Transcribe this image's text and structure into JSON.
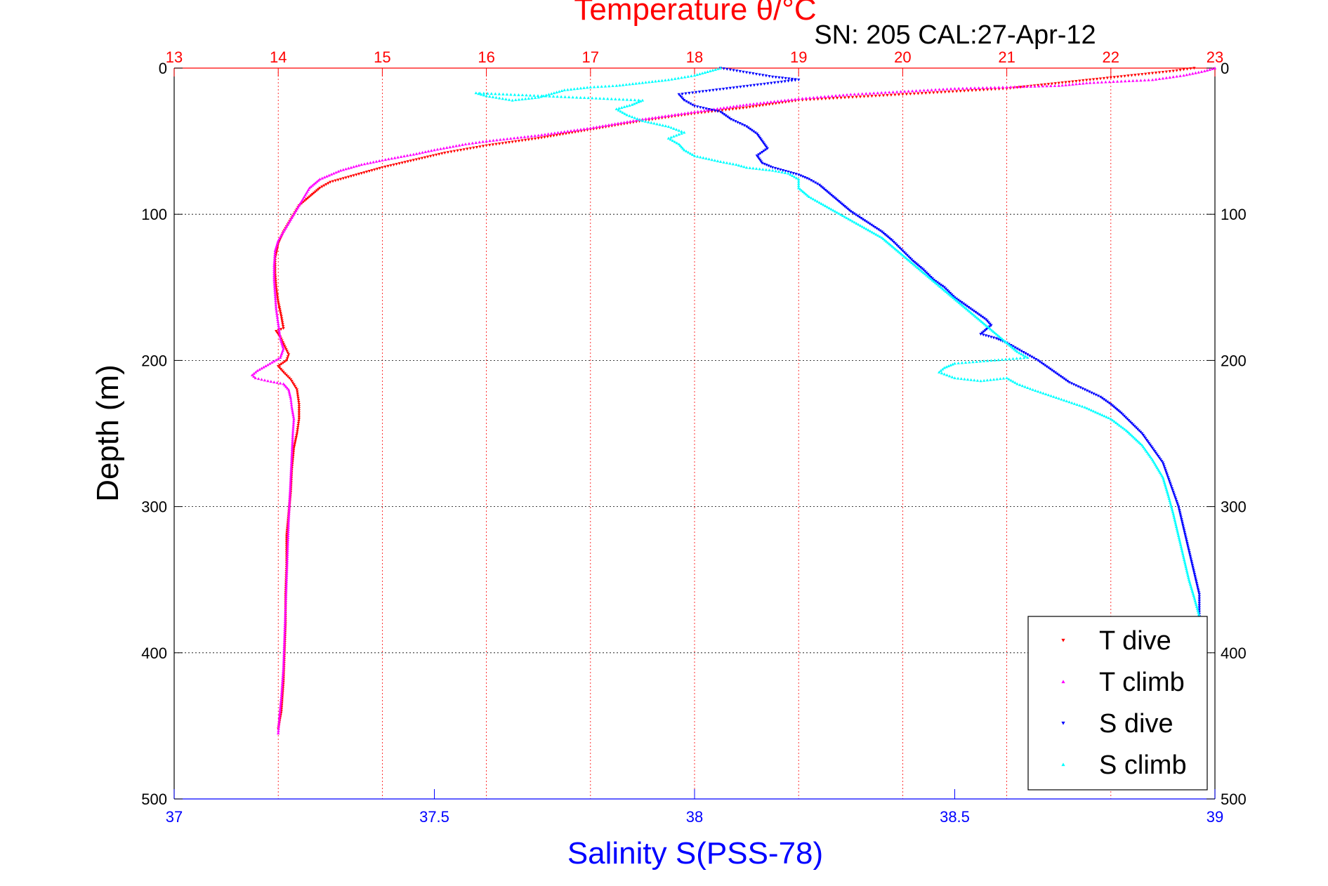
{
  "chart_data": {
    "type": "scatter",
    "title": "Temperature θ/°C",
    "subtitle": "SN: 205  CAL:27-Apr-12",
    "xlabel_bottom": "Salinity S(PSS-78)",
    "xlabel_top": "Temperature θ/°C",
    "ylabel": "Depth (m)",
    "ylim": [
      0,
      500
    ],
    "y_reversed": true,
    "y_ticks": [
      0,
      100,
      200,
      300,
      400,
      500
    ],
    "salinity_xlim": [
      37,
      39
    ],
    "salinity_ticks": [
      "37",
      "37.5",
      "38",
      "38.5",
      "39"
    ],
    "temperature_xlim": [
      13,
      23
    ],
    "temperature_ticks": [
      "13",
      "14",
      "15",
      "16",
      "17",
      "18",
      "19",
      "20",
      "21",
      "22",
      "23"
    ],
    "grid": true,
    "legend_position": "bottom-right",
    "colors": {
      "temperature_axis": "#ff0000",
      "salinity_axis": "#0000ff",
      "t_dive": "#ff0000",
      "t_climb": "#ff00ff",
      "s_dive": "#0000ff",
      "s_climb": "#00ffff"
    },
    "series": [
      {
        "name": "T dive",
        "axis": "temperature",
        "marker": "triangle-down",
        "points": [
          [
            22.8,
            0
          ],
          [
            22.6,
            2
          ],
          [
            22.2,
            5
          ],
          [
            21.0,
            14
          ],
          [
            20.0,
            18
          ],
          [
            19.0,
            22
          ],
          [
            18.5,
            27
          ],
          [
            18.0,
            31
          ],
          [
            17.5,
            36
          ],
          [
            17.0,
            42
          ],
          [
            16.5,
            48
          ],
          [
            16.0,
            53
          ],
          [
            15.6,
            58
          ],
          [
            15.3,
            63
          ],
          [
            15.0,
            68
          ],
          [
            14.7,
            74
          ],
          [
            14.5,
            78
          ],
          [
            14.4,
            82
          ],
          [
            14.3,
            88
          ],
          [
            14.2,
            94
          ],
          [
            14.15,
            100
          ],
          [
            14.1,
            106
          ],
          [
            14.05,
            112
          ],
          [
            14.0,
            120
          ],
          [
            13.97,
            130
          ],
          [
            13.97,
            140
          ],
          [
            13.98,
            150
          ],
          [
            14.0,
            160
          ],
          [
            14.03,
            170
          ],
          [
            14.05,
            178
          ],
          [
            13.98,
            180
          ],
          [
            14.02,
            184
          ],
          [
            14.06,
            190
          ],
          [
            14.1,
            196
          ],
          [
            14.08,
            200
          ],
          [
            14.0,
            204
          ],
          [
            14.05,
            208
          ],
          [
            14.12,
            213
          ],
          [
            14.18,
            220
          ],
          [
            14.2,
            230
          ],
          [
            14.2,
            240
          ],
          [
            14.18,
            250
          ],
          [
            14.15,
            260
          ],
          [
            14.13,
            275
          ],
          [
            14.12,
            290
          ],
          [
            14.1,
            305
          ],
          [
            14.08,
            320
          ],
          [
            14.08,
            340
          ],
          [
            14.07,
            360
          ],
          [
            14.07,
            380
          ],
          [
            14.06,
            400
          ],
          [
            14.05,
            420
          ],
          [
            14.03,
            440
          ],
          [
            14.0,
            452
          ]
        ]
      },
      {
        "name": "T climb",
        "axis": "temperature",
        "marker": "triangle-up",
        "points": [
          [
            23.0,
            0
          ],
          [
            22.9,
            2
          ],
          [
            22.7,
            5
          ],
          [
            22.4,
            8
          ],
          [
            21.8,
            10
          ],
          [
            21.5,
            12
          ],
          [
            20.5,
            14
          ],
          [
            19.5,
            18
          ],
          [
            19.0,
            21
          ],
          [
            18.5,
            25
          ],
          [
            18.0,
            30
          ],
          [
            17.5,
            35
          ],
          [
            17.0,
            41
          ],
          [
            16.5,
            46
          ],
          [
            16.0,
            50
          ],
          [
            15.8,
            52
          ],
          [
            15.5,
            56
          ],
          [
            15.3,
            59
          ],
          [
            15.0,
            63
          ],
          [
            14.8,
            66
          ],
          [
            14.6,
            70
          ],
          [
            14.4,
            76
          ],
          [
            14.3,
            82
          ],
          [
            14.25,
            88
          ],
          [
            14.2,
            94
          ],
          [
            14.15,
            100
          ],
          [
            14.1,
            106
          ],
          [
            14.05,
            112
          ],
          [
            14.0,
            118
          ],
          [
            13.97,
            125
          ],
          [
            13.96,
            135
          ],
          [
            13.96,
            145
          ],
          [
            13.97,
            155
          ],
          [
            13.98,
            165
          ],
          [
            14.0,
            175
          ],
          [
            14.02,
            185
          ],
          [
            14.05,
            192
          ],
          [
            14.02,
            198
          ],
          [
            13.9,
            203
          ],
          [
            13.8,
            207
          ],
          [
            13.75,
            210
          ],
          [
            13.78,
            212
          ],
          [
            13.9,
            214
          ],
          [
            14.05,
            216
          ],
          [
            14.1,
            220
          ],
          [
            14.12,
            226
          ],
          [
            14.13,
            232
          ],
          [
            14.15,
            240
          ],
          [
            14.14,
            250
          ],
          [
            14.13,
            265
          ],
          [
            14.12,
            280
          ],
          [
            14.11,
            295
          ],
          [
            14.1,
            310
          ],
          [
            14.09,
            330
          ],
          [
            14.08,
            350
          ],
          [
            14.07,
            370
          ],
          [
            14.06,
            390
          ],
          [
            14.05,
            410
          ],
          [
            14.03,
            430
          ],
          [
            14.01,
            445
          ],
          [
            14.0,
            455
          ]
        ]
      },
      {
        "name": "S dive",
        "axis": "salinity",
        "marker": "triangle-down",
        "points": [
          [
            38.05,
            0
          ],
          [
            38.1,
            3
          ],
          [
            38.15,
            6
          ],
          [
            38.2,
            8
          ],
          [
            37.97,
            18
          ],
          [
            37.98,
            22
          ],
          [
            38.0,
            26
          ],
          [
            38.05,
            30
          ],
          [
            38.07,
            35
          ],
          [
            38.1,
            40
          ],
          [
            38.12,
            45
          ],
          [
            38.13,
            50
          ],
          [
            38.14,
            55
          ],
          [
            38.12,
            60
          ],
          [
            38.13,
            65
          ],
          [
            38.15,
            68
          ],
          [
            38.2,
            73
          ],
          [
            38.22,
            76
          ],
          [
            38.24,
            80
          ],
          [
            38.26,
            86
          ],
          [
            38.28,
            92
          ],
          [
            38.3,
            98
          ],
          [
            38.33,
            105
          ],
          [
            38.36,
            112
          ],
          [
            38.38,
            118
          ],
          [
            38.4,
            125
          ],
          [
            38.42,
            132
          ],
          [
            38.44,
            138
          ],
          [
            38.46,
            145
          ],
          [
            38.48,
            150
          ],
          [
            38.5,
            157
          ],
          [
            38.52,
            162
          ],
          [
            38.54,
            167
          ],
          [
            38.56,
            172
          ],
          [
            38.57,
            176
          ],
          [
            38.55,
            182
          ],
          [
            38.58,
            185
          ],
          [
            38.6,
            188
          ],
          [
            38.62,
            192
          ],
          [
            38.64,
            196
          ],
          [
            38.66,
            200
          ],
          [
            38.68,
            205
          ],
          [
            38.7,
            210
          ],
          [
            38.72,
            215
          ],
          [
            38.75,
            220
          ],
          [
            38.78,
            225
          ],
          [
            38.8,
            230
          ],
          [
            38.82,
            236
          ],
          [
            38.84,
            243
          ],
          [
            38.86,
            250
          ],
          [
            38.88,
            260
          ],
          [
            38.9,
            270
          ],
          [
            38.91,
            280
          ],
          [
            38.92,
            290
          ],
          [
            38.93,
            300
          ],
          [
            38.94,
            315
          ],
          [
            38.95,
            330
          ],
          [
            38.96,
            345
          ],
          [
            38.97,
            360
          ],
          [
            38.97,
            375
          ]
        ]
      },
      {
        "name": "S climb",
        "axis": "salinity",
        "marker": "triangle-up",
        "points": [
          [
            38.05,
            0
          ],
          [
            38.02,
            3
          ],
          [
            38.0,
            5
          ],
          [
            37.95,
            8
          ],
          [
            37.9,
            10
          ],
          [
            37.85,
            12
          ],
          [
            37.8,
            13
          ],
          [
            37.75,
            15
          ],
          [
            37.72,
            18
          ],
          [
            37.7,
            20
          ],
          [
            37.65,
            22
          ],
          [
            37.6,
            19
          ],
          [
            37.58,
            17
          ],
          [
            37.9,
            22
          ],
          [
            37.88,
            25
          ],
          [
            37.85,
            28
          ],
          [
            37.87,
            32
          ],
          [
            37.9,
            36
          ],
          [
            37.95,
            40
          ],
          [
            37.98,
            44
          ],
          [
            37.95,
            48
          ],
          [
            37.97,
            52
          ],
          [
            37.98,
            56
          ],
          [
            38.0,
            60
          ],
          [
            38.05,
            64
          ],
          [
            38.08,
            66
          ],
          [
            38.1,
            68
          ],
          [
            38.15,
            70
          ],
          [
            38.18,
            72
          ],
          [
            38.2,
            76
          ],
          [
            38.2,
            82
          ],
          [
            38.22,
            88
          ],
          [
            38.24,
            92
          ],
          [
            38.27,
            98
          ],
          [
            38.3,
            104
          ],
          [
            38.33,
            110
          ],
          [
            38.36,
            116
          ],
          [
            38.38,
            122
          ],
          [
            38.4,
            128
          ],
          [
            38.42,
            134
          ],
          [
            38.44,
            140
          ],
          [
            38.46,
            146
          ],
          [
            38.48,
            152
          ],
          [
            38.5,
            158
          ],
          [
            38.52,
            164
          ],
          [
            38.54,
            170
          ],
          [
            38.56,
            176
          ],
          [
            38.58,
            182
          ],
          [
            38.6,
            188
          ],
          [
            38.62,
            194
          ],
          [
            38.64,
            198
          ],
          [
            38.5,
            202
          ],
          [
            38.48,
            205
          ],
          [
            38.47,
            208
          ],
          [
            38.5,
            212
          ],
          [
            38.55,
            214
          ],
          [
            38.6,
            212
          ],
          [
            38.62,
            216
          ],
          [
            38.65,
            220
          ],
          [
            38.7,
            226
          ],
          [
            38.75,
            232
          ],
          [
            38.8,
            240
          ],
          [
            38.83,
            248
          ],
          [
            38.86,
            258
          ],
          [
            38.88,
            268
          ],
          [
            38.9,
            280
          ],
          [
            38.91,
            292
          ],
          [
            38.92,
            305
          ],
          [
            38.93,
            320
          ],
          [
            38.94,
            335
          ],
          [
            38.95,
            350
          ],
          [
            38.96,
            362
          ],
          [
            38.97,
            375
          ]
        ]
      }
    ]
  }
}
